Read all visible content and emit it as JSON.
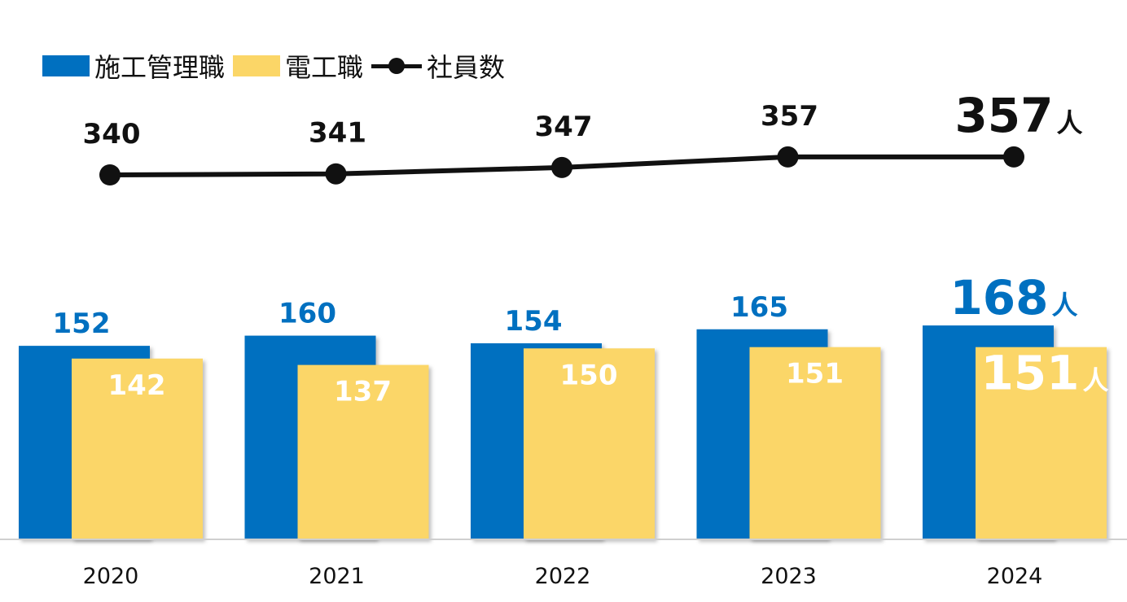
{
  "colors": {
    "construction": "#0070C0",
    "electrical": "#FBD667",
    "total": "#111111"
  },
  "legend": {
    "construction": "施工管理職",
    "electrical": "電工職",
    "total": "社員数"
  },
  "unit": "人",
  "chart_data": {
    "type": "bar",
    "categories": [
      "2020",
      "2021",
      "2022",
      "2023",
      "2024"
    ],
    "series": [
      {
        "name": "施工管理職",
        "type": "bar",
        "values": [
          152,
          160,
          154,
          165,
          168
        ]
      },
      {
        "name": "電工職",
        "type": "bar",
        "values": [
          142,
          137,
          150,
          151,
          151
        ]
      },
      {
        "name": "社員数",
        "type": "line",
        "values": [
          340,
          341,
          347,
          357,
          357
        ]
      }
    ],
    "legend_position": "top-left",
    "grid": false
  }
}
